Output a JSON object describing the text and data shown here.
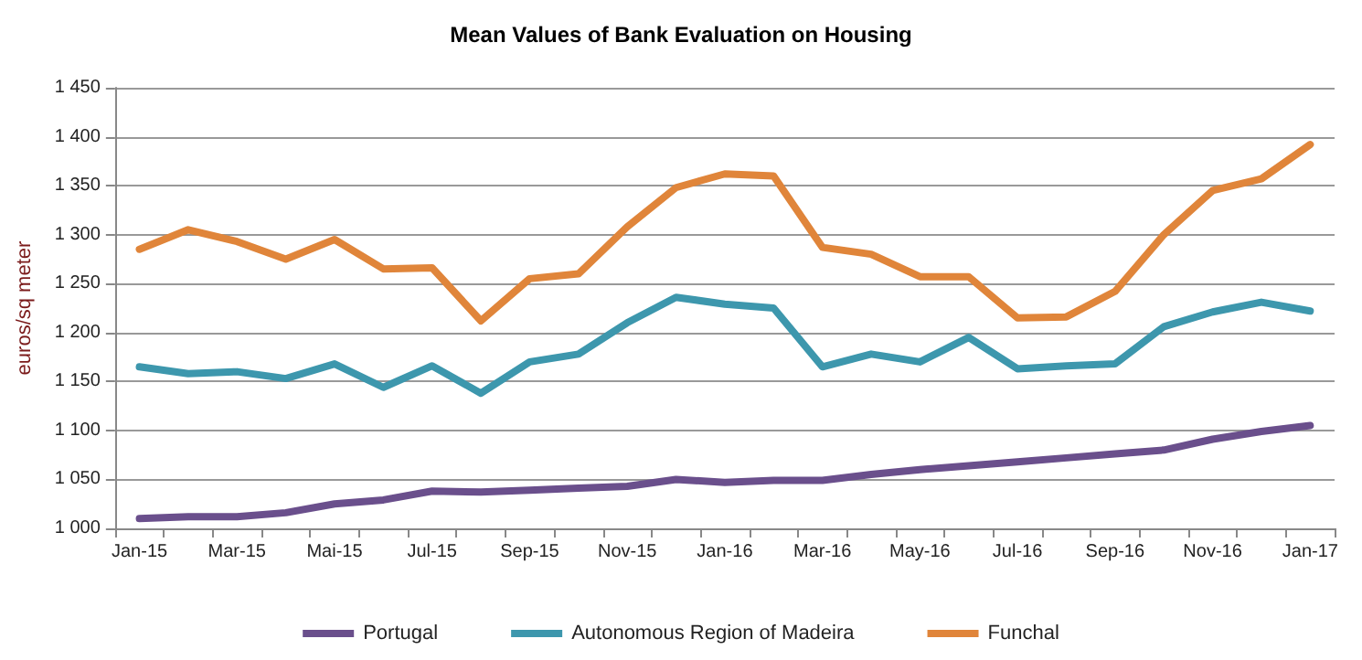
{
  "chart_data": {
    "type": "line",
    "title": "Mean Values of Bank Evaluation on Housing",
    "ylabel": "euros/sq meter",
    "categories": [
      "Jan-15",
      null,
      "Mar-15",
      null,
      "Mai-15",
      null,
      "Jul-15",
      null,
      "Sep-15",
      null,
      "Nov-15",
      null,
      "Jan-16",
      null,
      "Mar-16",
      null,
      "May-16",
      null,
      "Jul-16",
      null,
      "Sep-16",
      null,
      "Nov-16",
      null,
      "Jan-17"
    ],
    "series": [
      {
        "name": "Portugal",
        "color": "#6a4f8c",
        "values": [
          1010,
          1012,
          1012,
          1016,
          1025,
          1029,
          1038,
          1037,
          1039,
          1041,
          1043,
          1050,
          1047,
          1049,
          1049,
          1055,
          1060,
          1064,
          1068,
          1072,
          1076,
          1080,
          1091,
          1099,
          1105
        ]
      },
      {
        "name": "Autonomous Region of Madeira",
        "color": "#3d97ad",
        "values": [
          1165,
          1158,
          1160,
          1153,
          1168,
          1144,
          1166,
          1138,
          1170,
          1178,
          1210,
          1236,
          1229,
          1225,
          1165,
          1178,
          1170,
          1195,
          1163,
          1166,
          1168,
          1206,
          1221,
          1231,
          1222
        ]
      },
      {
        "name": "Funchal",
        "color": "#e0853a",
        "values": [
          1285,
          1305,
          1293,
          1275,
          1295,
          1265,
          1266,
          1212,
          1255,
          1260,
          1308,
          1348,
          1362,
          1360,
          1287,
          1280,
          1257,
          1257,
          1215,
          1216,
          1242,
          1300,
          1345,
          1357,
          1392
        ]
      }
    ],
    "ylim": [
      1000,
      1450
    ],
    "yticks": [
      {
        "value": 1000,
        "label": "1 000"
      },
      {
        "value": 1050,
        "label": "1 050"
      },
      {
        "value": 1100,
        "label": "1 100"
      },
      {
        "value": 1150,
        "label": "1 150"
      },
      {
        "value": 1200,
        "label": "1 200"
      },
      {
        "value": 1250,
        "label": "1 250"
      },
      {
        "value": 1300,
        "label": "1 300"
      },
      {
        "value": 1350,
        "label": "1 350"
      },
      {
        "value": 1400,
        "label": "1 400"
      },
      {
        "value": 1450,
        "label": "1 450"
      }
    ],
    "grid": "y",
    "legend": "bottom",
    "marker": "none",
    "line_style": "solid"
  }
}
